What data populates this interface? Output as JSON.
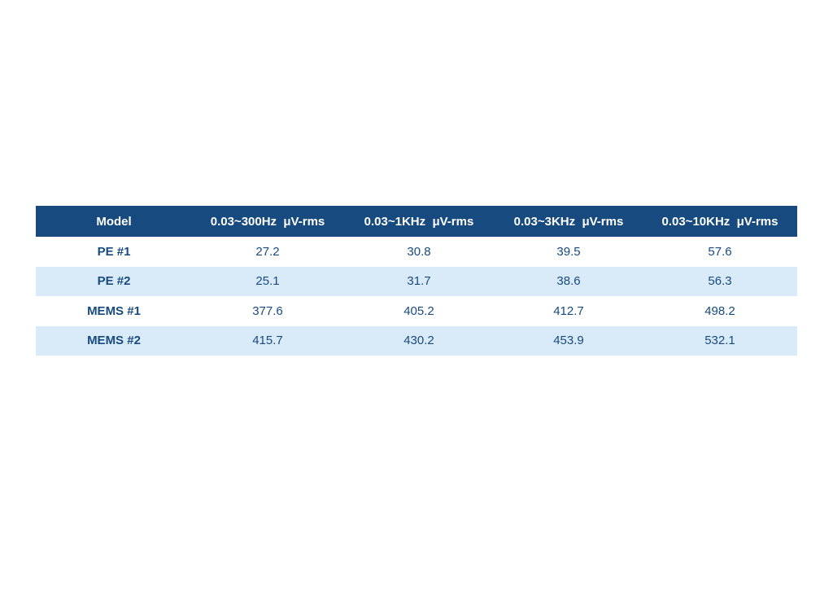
{
  "table": {
    "headers": [
      "Model",
      "0.03~300Hz  μV-rms",
      "0.03~1KHz  μV-rms",
      "0.03~3KHz  μV-rms",
      "0.03~10KHz  μV-rms"
    ],
    "rows": [
      [
        "PE #1",
        "27.2",
        "30.8",
        "39.5",
        "57.6"
      ],
      [
        "PE #2",
        "25.1",
        "31.7",
        "38.6",
        "56.3"
      ],
      [
        "MEMS #1",
        "377.6",
        "405.2",
        "412.7",
        "498.2"
      ],
      [
        "MEMS #2",
        "415.7",
        "430.2",
        "453.9",
        "532.1"
      ]
    ],
    "colors": {
      "header_bg": "#174a7e",
      "header_text": "#ffffff",
      "body_text": "#174a7e",
      "stripe": "#d9ebf8"
    }
  }
}
